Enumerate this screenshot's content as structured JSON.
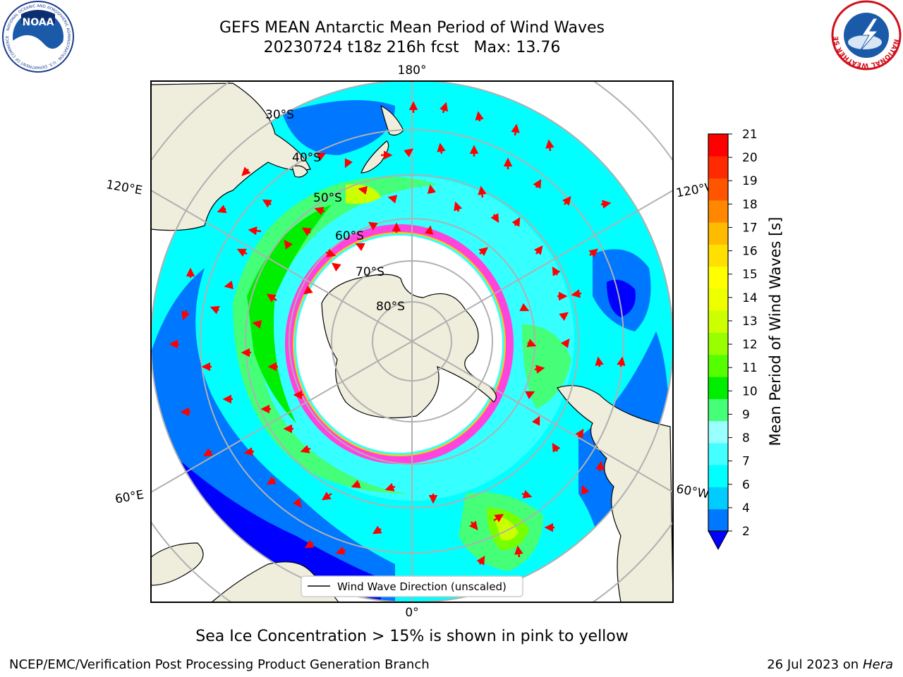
{
  "header": {
    "title_line1": "GEFS MEAN Antarctic Mean Period of Wind Waves",
    "title_line2": "20230724 t18z 216h fcst   Max: 13.76"
  },
  "logos": {
    "left": "noaa-logo",
    "left_text": "NOAA",
    "left_ring_text": "NATIONAL OCEANIC AND ATMOSPHERIC ADMINISTRATION · U.S. DEPARTMENT OF COMMERCE",
    "right": "national-weather-service-logo",
    "right_ring_text": "NATIONAL WEATHER SERVICE"
  },
  "map": {
    "projection": "south-polar-stereographic",
    "lon_labels": {
      "top": "180°",
      "bottom": "0°",
      "upper_left": "120°E",
      "lower_left": "60°E",
      "upper_right": "120°W",
      "lower_right": "60°W"
    },
    "lat_labels": [
      "30°S",
      "40°S",
      "50°S",
      "60°S",
      "70°S",
      "80°S"
    ],
    "legend_label": "Wind Wave Direction (unscaled)",
    "arrow_color": "#ff0000",
    "land_color": "#efeddc",
    "ocean_colors": [
      "#0000ff",
      "#0077ff",
      "#00ffff",
      "#44ffff",
      "#99ffff",
      "#44ff77",
      "#00ee00",
      "#77ff00",
      "#ccff00",
      "#ffff00"
    ]
  },
  "colorbar": {
    "label": "Mean Period of Wind Waves [s]",
    "ticks": [
      "2",
      "4",
      "6",
      "7",
      "8",
      "9",
      "10",
      "11",
      "12",
      "13",
      "14",
      "15",
      "16",
      "17",
      "18",
      "19",
      "20",
      "21"
    ],
    "colors": [
      "#0077ff",
      "#00ccff",
      "#00ffff",
      "#44ffff",
      "#99ffff",
      "#44ff77",
      "#00ee00",
      "#55ff00",
      "#99ff00",
      "#ccff00",
      "#eeff00",
      "#ffff00",
      "#ffe000",
      "#ffbb00",
      "#ff8800",
      "#ff5500",
      "#ff2a00",
      "#ff0000"
    ],
    "under_color": "#0000ff"
  },
  "caption": "Sea Ice Concentration > 15% is shown in pink to yellow",
  "footer": {
    "left": "NCEP/EMC/Verification Post Processing Product Generation Branch",
    "right_date": "26 Jul 2023 on ",
    "right_host": "Hera"
  }
}
